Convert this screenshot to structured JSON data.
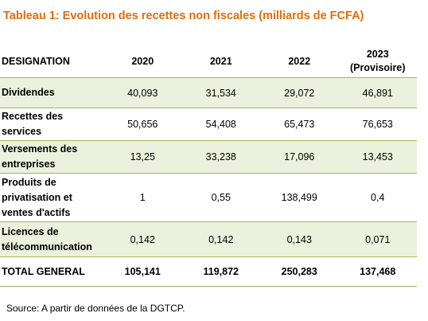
{
  "title": "Tableau 1: Evolution des recettes non fiscales (milliards de FCFA)",
  "table": {
    "header": [
      "DESIGNATION",
      "2020",
      "2021",
      "2022",
      "2023"
    ],
    "header_note": "(Provisoire)",
    "rows": [
      [
        "Dividendes",
        "40,093",
        "31,534",
        "29,072",
        "46,891"
      ],
      [
        "Recettes des services",
        "50,656",
        "54,408",
        "65,473",
        "76,653"
      ],
      [
        "Versements des entreprises",
        "13,25",
        "33,238",
        "17,096",
        "13,453"
      ],
      [
        "Produits de privatisation et ventes d'actifs",
        "1",
        "0,55",
        "138,499",
        "0,4"
      ],
      [
        "Licences de télécommunication",
        "0,142",
        "0,142",
        "0,143",
        "0,071"
      ],
      [
        "TOTAL GENERAL",
        "105,141",
        "119,872",
        "250,283",
        "137,468"
      ]
    ]
  },
  "source": "Source: A partir de données de la DGTCP."
}
